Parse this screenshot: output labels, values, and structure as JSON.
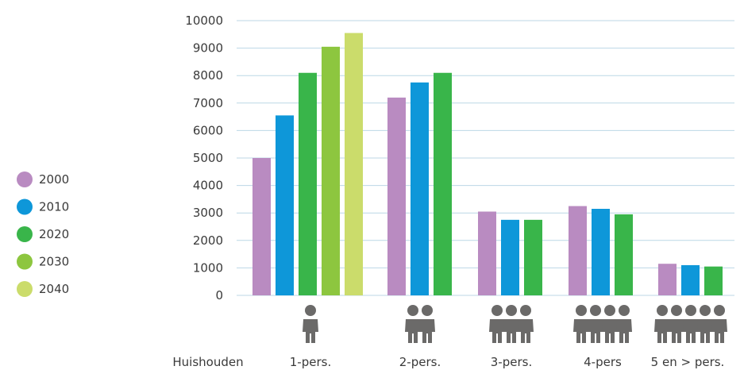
{
  "chart_data": {
    "type": "bar",
    "title": "",
    "xlabel": "Huishouden",
    "ylabel": "",
    "ylim": [
      0,
      10000
    ],
    "yticks": [
      0,
      1000,
      2000,
      3000,
      4000,
      5000,
      6000,
      7000,
      8000,
      9000,
      10000
    ],
    "grid": true,
    "legend_position": "left",
    "categories": [
      "1-pers.",
      "2-pers.",
      "3-pers.",
      "4-pers",
      "5 en > pers."
    ],
    "category_people": [
      1,
      2,
      3,
      4,
      5
    ],
    "series": [
      {
        "name": "2000",
        "color": "#b98bc1",
        "values": [
          5000,
          7200,
          3050,
          3250,
          1150
        ]
      },
      {
        "name": "2010",
        "color": "#0e97d9",
        "values": [
          6550,
          7750,
          2750,
          3150,
          1100
        ]
      },
      {
        "name": "2020",
        "color": "#39b54a",
        "values": [
          8100,
          8100,
          2750,
          2950,
          1050
        ]
      },
      {
        "name": "2030",
        "color": "#8dc63f",
        "values": [
          9050,
          null,
          null,
          null,
          null
        ]
      },
      {
        "name": "2040",
        "color": "#cbdc6b",
        "values": [
          9550,
          null,
          null,
          null,
          null
        ]
      }
    ]
  }
}
